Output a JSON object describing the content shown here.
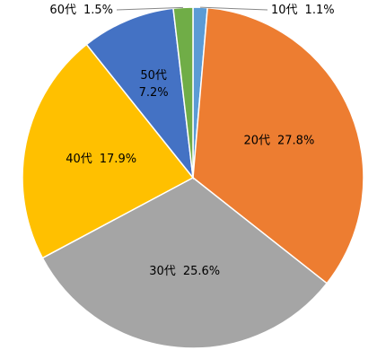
{
  "chart_data": {
    "type": "pie",
    "categories": [
      "10代",
      "20代",
      "30代",
      "40代",
      "50代",
      "60代"
    ],
    "values": [
      1.1,
      27.8,
      25.6,
      17.9,
      7.2,
      1.5
    ],
    "value_labels": [
      "1.1%",
      "27.8%",
      "25.6%",
      "17.9%",
      "7.2%",
      "1.5%"
    ],
    "colors": [
      "#5b9bd5",
      "#ed7d31",
      "#a5a5a5",
      "#ffc000",
      "#4472c4",
      "#70ad47"
    ]
  }
}
